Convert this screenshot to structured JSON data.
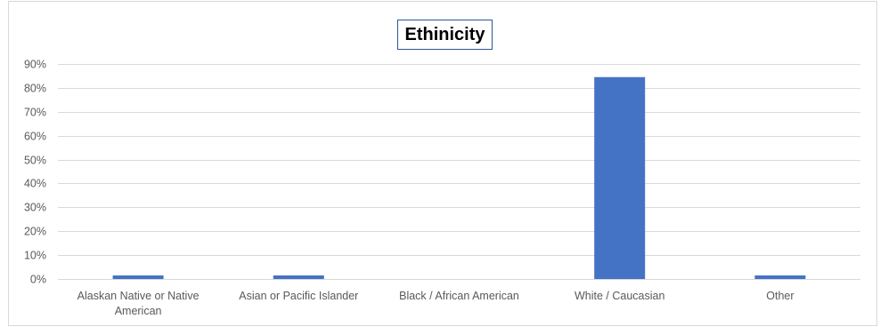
{
  "chart_data": {
    "type": "bar",
    "title": "Ethinicity",
    "xlabel": "",
    "ylabel": "",
    "ylim": [
      0,
      0.9
    ],
    "y_ticks": [
      "0%",
      "10%",
      "20%",
      "30%",
      "40%",
      "50%",
      "60%",
      "70%",
      "80%",
      "90%"
    ],
    "y_tick_values": [
      0,
      0.1,
      0.2,
      0.3,
      0.4,
      0.5,
      0.6,
      0.7,
      0.8,
      0.9
    ],
    "categories": [
      [
        "Alaskan Native or Native",
        "American"
      ],
      [
        "Asian or Pacific Islander"
      ],
      [
        "Black / African American"
      ],
      [
        "White / Caucasian"
      ],
      [
        "Other"
      ]
    ],
    "values": [
      0.015,
      0.015,
      0.0,
      0.845,
      0.015
    ],
    "grid": true,
    "legend": "none",
    "bar_color": "#4472c4"
  }
}
